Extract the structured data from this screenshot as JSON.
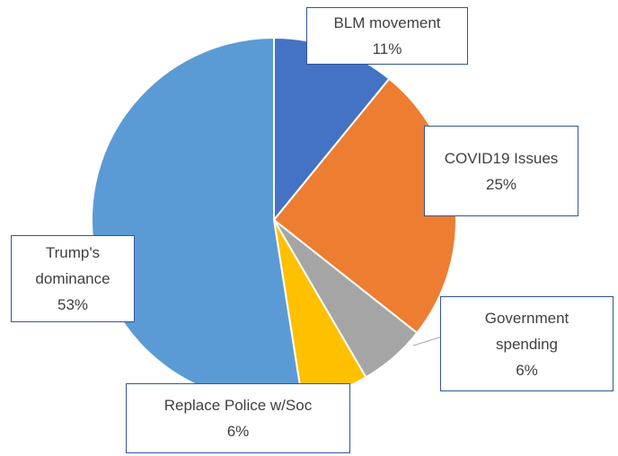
{
  "chart_data": {
    "type": "pie",
    "categories": [
      "BLM movement",
      "COVID19 Issues",
      "Government spending",
      "Replace Police w/Soc",
      "Trump's dominance"
    ],
    "values": [
      11,
      25,
      6,
      6,
      53
    ],
    "value_labels": [
      "11%",
      "25%",
      "6%",
      "6%",
      "53%"
    ],
    "colors": [
      "#4472c4",
      "#ed7d31",
      "#a5a5a5",
      "#ffc000",
      "#5b9bd5"
    ]
  }
}
